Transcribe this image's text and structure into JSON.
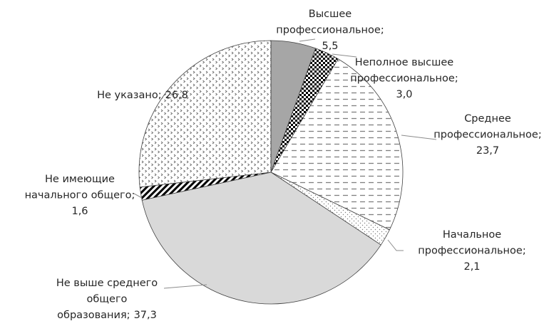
{
  "chart_data": {
    "type": "pie",
    "categories": [
      "Высшее профессиональное;",
      "Неполное высшее профессиональное;",
      "Среднее профессиональное;",
      "Начальное профессиональное;",
      "Не выше среднего общего образования;",
      "Не имеющие начального общего;",
      "Не указано;"
    ],
    "values": [
      5.5,
      3.0,
      23.7,
      2.1,
      37.3,
      1.6,
      26.8
    ],
    "value_labels": [
      "5,5",
      "3,0",
      "23,7",
      "2,1",
      "37,3",
      "1,6",
      "26,8"
    ],
    "colors": [
      "#a6a6a6",
      "#000000",
      "#7f7f7f",
      "#7f7f7f",
      "#d9d9d9",
      "#000000",
      "#595959"
    ]
  }
}
